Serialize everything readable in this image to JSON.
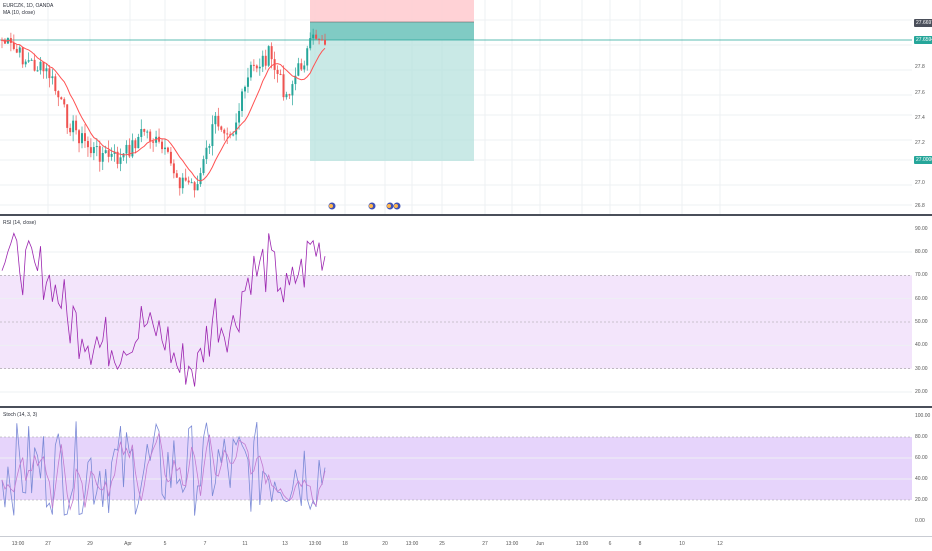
{
  "symbol": {
    "title": "EURCZK, 1D, OANDA",
    "ma_legend": "MA (10, close)"
  },
  "rsi": {
    "legend": "RSI (14, close)"
  },
  "stoch": {
    "legend": "Stoch (14, 3, 3)"
  },
  "price_axis": [
    "27.8",
    "27.6",
    "27.4",
    "27.2",
    "27.0",
    "26.8"
  ],
  "price_tags": {
    "last": "27.6594",
    "stop": "27.6697",
    "target": "27.0000"
  },
  "rsi_axis": [
    "90.00",
    "80.00",
    "70.00",
    "60.00",
    "50.00",
    "40.00",
    "30.00",
    "20.00"
  ],
  "stoch_axis": [
    "100.00",
    "80.00",
    "60.00",
    "40.00",
    "20.00",
    "0.00"
  ],
  "x_axis": [
    "13:00",
    "27",
    "29",
    "Apr",
    "5",
    "7",
    "11",
    "13",
    "13:00",
    "18",
    "20",
    "13:00",
    "25",
    "27",
    "13:00",
    "Jun",
    "13:00",
    "6",
    "8",
    "10",
    "12"
  ],
  "colors": {
    "up": "#26a69a",
    "down": "#ef5350",
    "ma": "#ff5252",
    "rsi": "#9c27b0",
    "band": "#e1bee7",
    "stoch_k": "#7b8ad6",
    "stoch_d": "#c27bd0",
    "stoch_band": "#d1b3f5",
    "target": "#b2dfdb",
    "stop": "#ffcdd2"
  },
  "icons": [
    "earnings-icon",
    "earnings-icon",
    "earnings-icon",
    "earnings-icon"
  ]
}
